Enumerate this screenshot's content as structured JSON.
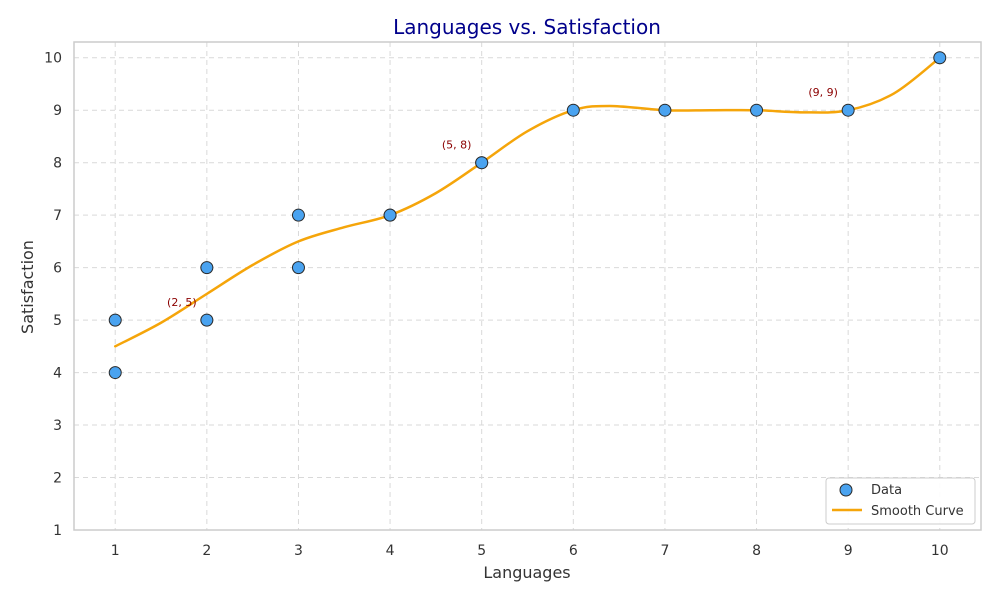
{
  "chart_data": {
    "type": "scatter",
    "title": "Languages vs. Satisfaction",
    "xlabel": "Languages",
    "ylabel": "Satisfaction",
    "xlim": [
      0.55,
      10.45
    ],
    "ylim": [
      1,
      10.3
    ],
    "xticks": [
      1,
      2,
      3,
      4,
      5,
      6,
      7,
      8,
      9,
      10
    ],
    "yticks": [
      1,
      2,
      3,
      4,
      5,
      6,
      7,
      8,
      9,
      10
    ],
    "grid": true,
    "legend_position": "bottom-right",
    "series": [
      {
        "name": "Data",
        "kind": "scatter",
        "color": "#4aa3f0",
        "edge_color": "#2a2a2a",
        "points": [
          {
            "x": 1,
            "y": 5
          },
          {
            "x": 1,
            "y": 4
          },
          {
            "x": 2,
            "y": 6
          },
          {
            "x": 2,
            "y": 5
          },
          {
            "x": 3,
            "y": 7
          },
          {
            "x": 3,
            "y": 6
          },
          {
            "x": 4,
            "y": 7
          },
          {
            "x": 4,
            "y": 7
          },
          {
            "x": 5,
            "y": 8
          },
          {
            "x": 5,
            "y": 8
          },
          {
            "x": 6,
            "y": 9
          },
          {
            "x": 7,
            "y": 9
          },
          {
            "x": 8,
            "y": 9
          },
          {
            "x": 9,
            "y": 9
          },
          {
            "x": 10,
            "y": 10
          }
        ]
      },
      {
        "name": "Smooth Curve",
        "kind": "line",
        "color": "#f5a50a",
        "points": [
          {
            "x": 1,
            "y": 4.5
          },
          {
            "x": 1.5,
            "y": 4.95
          },
          {
            "x": 2,
            "y": 5.5
          },
          {
            "x": 2.5,
            "y": 6.05
          },
          {
            "x": 3,
            "y": 6.5
          },
          {
            "x": 3.5,
            "y": 6.77
          },
          {
            "x": 4,
            "y": 7
          },
          {
            "x": 4.5,
            "y": 7.42
          },
          {
            "x": 5,
            "y": 8
          },
          {
            "x": 5.5,
            "y": 8.6
          },
          {
            "x": 6,
            "y": 9
          },
          {
            "x": 6.4,
            "y": 9.08
          },
          {
            "x": 7,
            "y": 9
          },
          {
            "x": 7.5,
            "y": 9
          },
          {
            "x": 8,
            "y": 9
          },
          {
            "x": 8.5,
            "y": 8.96
          },
          {
            "x": 9,
            "y": 9
          },
          {
            "x": 9.5,
            "y": 9.32
          },
          {
            "x": 10,
            "y": 10
          }
        ]
      }
    ],
    "annotations": [
      {
        "text": "(2, 5)",
        "x": 2,
        "y": 5,
        "color": "#8b0000"
      },
      {
        "text": "(5, 8)",
        "x": 5,
        "y": 8,
        "color": "#8b0000"
      },
      {
        "text": "(9, 9)",
        "x": 9,
        "y": 9,
        "color": "#8b0000"
      }
    ],
    "colors": {
      "title": "#00008b",
      "axis_text": "#333333",
      "grid": "#d9d9d9",
      "spine": "#cccccc"
    }
  }
}
